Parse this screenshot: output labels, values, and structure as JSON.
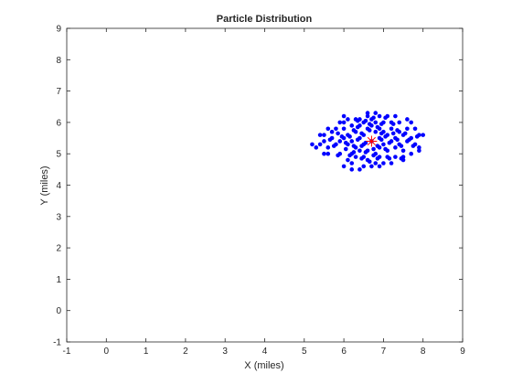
{
  "chart_data": {
    "type": "scatter",
    "title": "Particle Distribution",
    "xlabel": "X (miles)",
    "ylabel": "Y (miles)",
    "xlim": [
      -1,
      9
    ],
    "ylim": [
      -1,
      9
    ],
    "xticks": [
      "-1",
      "0",
      "1",
      "2",
      "3",
      "4",
      "5",
      "6",
      "7",
      "8",
      "9"
    ],
    "yticks": [
      "-1",
      "0",
      "1",
      "2",
      "3",
      "4",
      "5",
      "6",
      "7",
      "8",
      "9"
    ],
    "grid": false,
    "legend": "none",
    "particle_color": "#0000ff",
    "estimate_color": "#ff0000",
    "estimate_marker": "star",
    "estimate": {
      "x": 6.7,
      "y": 5.4
    },
    "series": [
      {
        "points": [
          [
            6.7,
            5.4
          ],
          [
            6.9,
            5.5
          ],
          [
            6.5,
            5.3
          ],
          [
            7.1,
            5.6
          ],
          [
            6.3,
            5.2
          ],
          [
            6.8,
            5.7
          ],
          [
            6.6,
            5.1
          ],
          [
            7.0,
            5.3
          ],
          [
            6.4,
            5.5
          ],
          [
            7.2,
            5.4
          ],
          [
            6.2,
            5.4
          ],
          [
            6.9,
            5.2
          ],
          [
            6.5,
            5.6
          ],
          [
            7.3,
            5.5
          ],
          [
            6.1,
            5.3
          ],
          [
            6.8,
            5.0
          ],
          [
            6.6,
            5.8
          ],
          [
            7.0,
            5.7
          ],
          [
            6.4,
            5.1
          ],
          [
            7.4,
            5.3
          ],
          [
            6.0,
            5.5
          ],
          [
            6.7,
            5.9
          ],
          [
            6.3,
            5.7
          ],
          [
            7.1,
            5.1
          ],
          [
            6.9,
            5.8
          ],
          [
            6.2,
            5.0
          ],
          [
            7.5,
            5.6
          ],
          [
            5.9,
            5.4
          ],
          [
            6.5,
            4.9
          ],
          [
            7.2,
            5.8
          ],
          [
            6.8,
            6.0
          ],
          [
            6.1,
            5.6
          ],
          [
            7.3,
            5.2
          ],
          [
            6.4,
            5.9
          ],
          [
            5.8,
            5.3
          ],
          [
            7.6,
            5.4
          ],
          [
            6.6,
            4.8
          ],
          [
            7.0,
            6.0
          ],
          [
            6.3,
            4.9
          ],
          [
            7.4,
            5.7
          ],
          [
            5.7,
            5.5
          ],
          [
            6.9,
            4.9
          ],
          [
            6.0,
            5.8
          ],
          [
            7.7,
            5.5
          ],
          [
            6.2,
            5.9
          ],
          [
            7.1,
            4.9
          ],
          [
            5.6,
            5.2
          ],
          [
            6.7,
            6.1
          ],
          [
            7.5,
            5.1
          ],
          [
            5.9,
            5.0
          ],
          [
            6.5,
            6.0
          ],
          [
            7.8,
            5.3
          ],
          [
            5.5,
            5.4
          ],
          [
            7.2,
            6.0
          ],
          [
            6.1,
            4.8
          ],
          [
            6.8,
            4.7
          ],
          [
            7.6,
            5.8
          ],
          [
            5.7,
            5.7
          ],
          [
            6.4,
            6.1
          ],
          [
            7.3,
            4.9
          ],
          [
            5.6,
            5.0
          ],
          [
            6.0,
            6.0
          ],
          [
            7.9,
            5.6
          ],
          [
            6.6,
            6.2
          ],
          [
            7.0,
            4.7
          ],
          [
            5.4,
            5.3
          ],
          [
            7.7,
            5.0
          ],
          [
            6.3,
            6.1
          ],
          [
            6.9,
            6.2
          ],
          [
            5.8,
            5.8
          ],
          [
            7.4,
            6.0
          ],
          [
            6.2,
            4.7
          ],
          [
            6.0,
            4.6
          ],
          [
            7.1,
            6.2
          ],
          [
            5.5,
            5.6
          ],
          [
            7.8,
            5.8
          ],
          [
            6.5,
            4.6
          ],
          [
            7.5,
            4.9
          ],
          [
            5.9,
            6.0
          ],
          [
            6.7,
            4.6
          ],
          [
            7.2,
            4.7
          ],
          [
            6.8,
            6.3
          ],
          [
            5.3,
            5.2
          ],
          [
            7.9,
            5.1
          ],
          [
            6.1,
            6.1
          ],
          [
            6.4,
            4.5
          ],
          [
            7.6,
            6.1
          ],
          [
            5.6,
            5.8
          ],
          [
            6.95,
            5.45
          ],
          [
            6.55,
            5.35
          ],
          [
            6.85,
            5.25
          ],
          [
            6.45,
            5.65
          ],
          [
            7.05,
            5.55
          ],
          [
            6.35,
            5.45
          ],
          [
            6.75,
            5.15
          ],
          [
            6.65,
            5.75
          ],
          [
            7.15,
            5.35
          ],
          [
            6.25,
            5.25
          ],
          [
            6.95,
            5.65
          ],
          [
            6.55,
            5.05
          ],
          [
            7.25,
            5.65
          ],
          [
            6.15,
            5.55
          ],
          [
            6.85,
            5.85
          ],
          [
            6.45,
            5.25
          ],
          [
            7.35,
            5.45
          ],
          [
            6.05,
            5.35
          ],
          [
            6.75,
            4.95
          ],
          [
            6.65,
            5.95
          ],
          [
            7.05,
            5.15
          ],
          [
            6.35,
            5.85
          ],
          [
            7.45,
            5.25
          ],
          [
            5.95,
            5.55
          ],
          [
            6.85,
            4.85
          ],
          [
            6.25,
            5.75
          ],
          [
            7.55,
            5.65
          ],
          [
            6.05,
            5.15
          ],
          [
            6.95,
            5.95
          ],
          [
            7.15,
            4.85
          ],
          [
            6.45,
            4.85
          ],
          [
            7.65,
            5.45
          ],
          [
            5.85,
            5.65
          ],
          [
            7.25,
            5.95
          ],
          [
            6.15,
            4.95
          ],
          [
            6.55,
            6.05
          ],
          [
            7.75,
            5.25
          ],
          [
            5.75,
            5.25
          ],
          [
            7.35,
            5.75
          ],
          [
            6.35,
            6.05
          ],
          [
            7.45,
            4.85
          ],
          [
            5.65,
            5.45
          ],
          [
            6.75,
            6.15
          ],
          [
            6.25,
            5.05
          ],
          [
            7.85,
            5.55
          ],
          [
            5.85,
            4.95
          ],
          [
            7.05,
            6.15
          ],
          [
            6.65,
            4.75
          ],
          [
            8.0,
            5.6
          ],
          [
            5.2,
            5.3
          ],
          [
            6.2,
            4.5
          ],
          [
            7.3,
            6.2
          ],
          [
            5.5,
            5.0
          ],
          [
            6.9,
            4.6
          ],
          [
            7.7,
            6.0
          ],
          [
            6.0,
            6.2
          ],
          [
            5.4,
            5.6
          ],
          [
            7.9,
            5.2
          ],
          [
            6.6,
            6.3
          ],
          [
            7.5,
            4.8
          ]
        ]
      }
    ]
  }
}
